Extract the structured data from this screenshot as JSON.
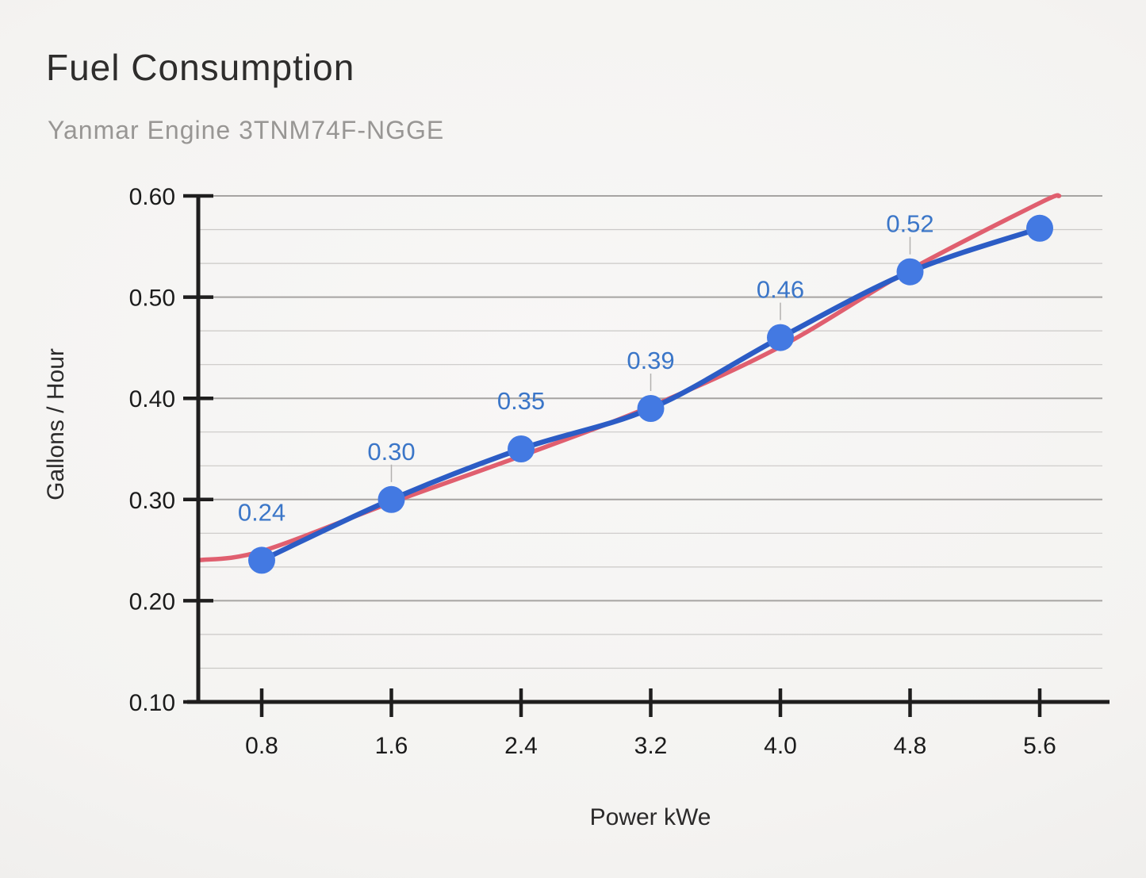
{
  "chart_data": {
    "type": "line",
    "title": "Fuel Consumption",
    "subtitle": "Yanmar Engine 3TNM74F-NGGE",
    "xlabel": "Power kWe",
    "ylabel": "Gallons / Hour",
    "x": [
      0.8,
      1.6,
      2.4,
      3.2,
      4.0,
      4.8,
      5.6
    ],
    "series": [
      {
        "name": "Gallons / Hour",
        "style": "smooth-line-with-markers",
        "values": [
          0.24,
          0.3,
          0.35,
          0.39,
          0.46,
          0.525,
          0.568
        ],
        "data_labels": [
          "0.24",
          "0.30",
          "0.35",
          "0.39",
          "0.46",
          "0.52",
          null
        ],
        "label_leader_lines": [
          false,
          true,
          false,
          true,
          true,
          true,
          false
        ]
      },
      {
        "name": "trendline",
        "style": "smooth-trend-curve",
        "x": [
          0.41,
          0.8,
          1.6,
          2.4,
          3.2,
          4.0,
          4.8,
          5.6,
          5.72
        ],
        "values": [
          0.24,
          0.249,
          0.297,
          0.343,
          0.392,
          0.451,
          0.527,
          0.593,
          0.6
        ]
      }
    ],
    "xlim": [
      0.41,
      5.98
    ],
    "ylim": [
      0.1,
      0.6
    ],
    "y_ticks": [
      "0.10",
      "0.20",
      "0.30",
      "0.40",
      "0.50",
      "0.60"
    ],
    "x_ticks": [
      "0.8",
      "1.6",
      "2.4",
      "3.2",
      "4.0",
      "4.8",
      "5.6"
    ],
    "grid": {
      "horizontal": true,
      "vertical": false,
      "minor_gridlines_per_major": 2
    },
    "legend": "none",
    "colors": {
      "series_line": "#2c5cc5",
      "marker_fill": "#4379e2",
      "data_label_text": "#3b76c8",
      "trendline": "#e05f6f",
      "major_gridline": "#a6a4a2",
      "minor_gridline": "#cbc9c7",
      "axis_line": "#1f1e1e",
      "tick_label_text": "#1b1b1b",
      "axis_title_text": "#2b2a2a",
      "leader_line": "#b3b1af"
    }
  }
}
